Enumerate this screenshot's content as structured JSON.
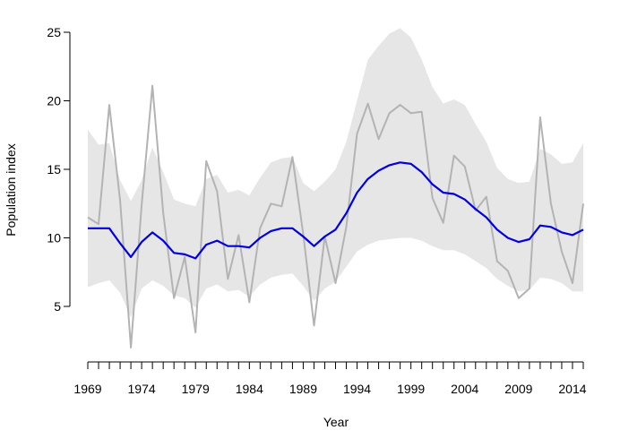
{
  "chart_data": {
    "type": "line",
    "title": "",
    "xlabel": "Year",
    "ylabel": "Population index",
    "xlim": [
      1969,
      2015
    ],
    "ylim": [
      0,
      25
    ],
    "x_ticks": [
      1969,
      1974,
      1979,
      1984,
      1989,
      1994,
      1999,
      2004,
      2009,
      2014
    ],
    "y_ticks": [
      5,
      10,
      15,
      20,
      25
    ],
    "grid": false,
    "legend": "none",
    "x": [
      1969,
      1970,
      1971,
      1972,
      1973,
      1974,
      1975,
      1976,
      1977,
      1978,
      1979,
      1980,
      1981,
      1982,
      1983,
      1984,
      1985,
      1986,
      1987,
      1988,
      1989,
      1990,
      1991,
      1992,
      1993,
      1994,
      1995,
      1996,
      1997,
      1998,
      1999,
      2000,
      2001,
      2002,
      2003,
      2004,
      2005,
      2006,
      2007,
      2008,
      2009,
      2010,
      2011,
      2012,
      2013,
      2014,
      2015
    ],
    "series": [
      {
        "role": "observed",
        "color": "#b3b3b3",
        "values": [
          11.5,
          11.0,
          19.7,
          12.7,
          2.0,
          12.4,
          21.1,
          11.8,
          5.6,
          8.6,
          3.1,
          15.6,
          13.4,
          7.0,
          10.2,
          5.3,
          10.7,
          12.5,
          12.3,
          15.9,
          10.3,
          3.6,
          10.1,
          6.7,
          10.8,
          17.6,
          19.8,
          17.2,
          19.1,
          19.7,
          19.1,
          19.2,
          12.9,
          11.1,
          16.0,
          15.2,
          12.0,
          13.0,
          8.3,
          7.6,
          5.6,
          6.3,
          18.8,
          12.5,
          9.0,
          6.7,
          12.5
        ]
      },
      {
        "role": "smoothed trend",
        "color": "#0000e0",
        "values": [
          10.7,
          10.7,
          10.7,
          9.6,
          8.6,
          9.7,
          10.4,
          9.8,
          8.9,
          8.8,
          8.5,
          9.5,
          9.8,
          9.4,
          9.4,
          9.3,
          10.0,
          10.5,
          10.7,
          10.7,
          10.1,
          9.4,
          10.1,
          10.6,
          11.8,
          13.3,
          14.3,
          14.9,
          15.3,
          15.5,
          15.4,
          14.8,
          13.9,
          13.3,
          13.2,
          12.8,
          12.1,
          11.5,
          10.6,
          10.0,
          9.7,
          9.9,
          10.9,
          10.8,
          10.4,
          10.2,
          10.6
        ]
      },
      {
        "role": "confidence band",
        "color": "#e6e6e6",
        "lower": [
          6.4,
          6.7,
          6.9,
          6.0,
          4.2,
          6.3,
          6.9,
          6.5,
          5.8,
          5.6,
          4.9,
          6.3,
          6.6,
          6.1,
          6.2,
          5.7,
          6.6,
          7.1,
          7.3,
          7.4,
          6.5,
          5.4,
          6.3,
          6.8,
          7.9,
          9.0,
          9.5,
          9.8,
          9.9,
          10.0,
          10.0,
          9.8,
          9.4,
          9.1,
          9.1,
          8.8,
          8.3,
          7.8,
          7.0,
          6.5,
          6.1,
          6.2,
          7.1,
          7.0,
          6.7,
          6.1,
          6.1
        ],
        "upper": [
          17.9,
          16.8,
          16.9,
          14.2,
          12.7,
          14.2,
          16.6,
          14.8,
          12.8,
          12.5,
          12.3,
          14.3,
          14.6,
          13.3,
          13.5,
          13.1,
          14.4,
          15.5,
          15.8,
          15.9,
          14.0,
          13.4,
          14.1,
          15.0,
          17.0,
          20.0,
          23.0,
          24.0,
          24.9,
          25.3,
          24.6,
          23.0,
          21.0,
          19.8,
          20.1,
          19.7,
          18.3,
          17.0,
          15.1,
          14.3,
          14.0,
          14.1,
          16.5,
          16.1,
          15.4,
          15.5,
          16.9
        ]
      }
    ]
  }
}
